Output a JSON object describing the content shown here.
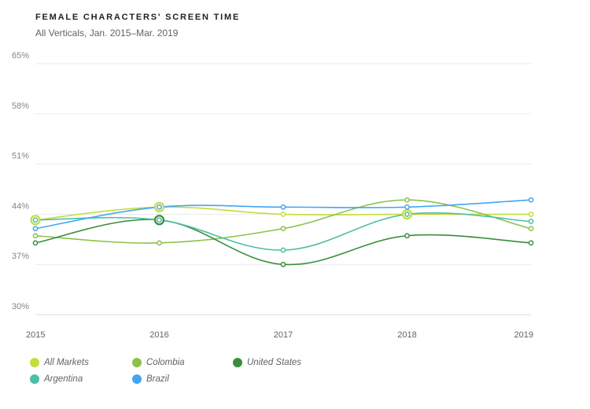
{
  "header": {
    "title": "FEMALE CHARACTERS' SCREEN TIME",
    "subtitle": "All Verticals, Jan. 2015–Mar. 2019"
  },
  "chart_data": {
    "type": "line",
    "title": "FEMALE CHARACTERS' SCREEN TIME",
    "subtitle": "All Verticals, Jan. 2015–Mar. 2019",
    "xlabel": "",
    "ylabel": "",
    "x": [
      "2015",
      "2016",
      "2017",
      "2018",
      "2019"
    ],
    "ylim": [
      30,
      65
    ],
    "yticks": [
      "30%",
      "37%",
      "44%",
      "51%",
      "58%",
      "65%"
    ],
    "ytick_values": [
      30,
      37,
      44,
      51,
      58,
      65
    ],
    "grid": true,
    "legend_position": "bottom-left",
    "series": [
      {
        "name": "All Markets",
        "color": "#c6dc3e",
        "values": [
          43.2,
          45.0,
          44.0,
          44.0,
          44.0
        ]
      },
      {
        "name": "Colombia",
        "color": "#8bc34a",
        "values": [
          41.0,
          40.0,
          42.0,
          46.0,
          42.0
        ]
      },
      {
        "name": "United States",
        "color": "#388e3c",
        "values": [
          40.0,
          43.2,
          37.0,
          41.0,
          40.0
        ]
      },
      {
        "name": "Argentina",
        "color": "#4dbfa5",
        "values": [
          43.2,
          43.2,
          39.0,
          44.0,
          43.0
        ]
      },
      {
        "name": "Brazil",
        "color": "#42a5f5",
        "values": [
          42.0,
          45.0,
          45.0,
          45.0,
          46.0
        ]
      }
    ],
    "highlighted_points": [
      {
        "series": "All Markets",
        "x": "2015"
      },
      {
        "series": "All Markets",
        "x": "2016"
      },
      {
        "series": "All Markets",
        "x": "2018"
      },
      {
        "series": "United States",
        "x": "2016"
      }
    ]
  }
}
